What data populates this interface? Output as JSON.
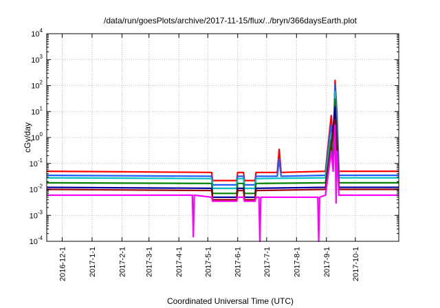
{
  "chart_data": {
    "type": "line",
    "title": "/data/run/goesPlots/archive/2017-11-15/flux/../bryn/366daysEarth.plot",
    "xlabel": "Coordinated Universal Time (UTC)",
    "ylabel": "cGy/day",
    "y_scale": "log",
    "ylim": [
      0.0001,
      10000
    ],
    "xlim": [
      "2016-11-15",
      "2017-11-15"
    ],
    "grid": true,
    "x_tick_labels": [
      "2016-12-1",
      "2017-1-1",
      "2017-2-1",
      "2017-3-1",
      "2017-4-1",
      "2017-5-1",
      "2017-6-1",
      "2017-7-1",
      "2017-8-1",
      "2017-9-1",
      "2017-10-1"
    ],
    "y_ticks": [
      {
        "base": "10",
        "exp": "-4",
        "value": 0.0001
      },
      {
        "base": "10",
        "exp": "-3",
        "value": 0.001
      },
      {
        "base": "10",
        "exp": "-2",
        "value": 0.01
      },
      {
        "base": "10",
        "exp": "-1",
        "value": 0.1
      },
      {
        "base": "10",
        "exp": "0",
        "value": 1
      },
      {
        "base": "10",
        "exp": "1",
        "value": 10
      },
      {
        "base": "10",
        "exp": "2",
        "value": 100
      },
      {
        "base": "10",
        "exp": "3",
        "value": 1000
      },
      {
        "base": "10",
        "exp": "4",
        "value": 10000
      }
    ],
    "series": [
      {
        "color": "#ff0000",
        "points": [
          [
            "2016-11-15",
            0.05
          ],
          [
            "2017-5-5",
            0.045
          ],
          [
            "2017-5-6",
            0.022
          ],
          [
            "2017-5-31",
            0.022
          ],
          [
            "2017-6-1",
            0.045
          ],
          [
            "2017-6-7",
            0.045
          ],
          [
            "2017-6-8",
            0.022
          ],
          [
            "2017-6-19",
            0.022
          ],
          [
            "2017-6-20",
            0.045
          ],
          [
            "2017-7-12",
            0.045
          ],
          [
            "2017-7-14",
            0.35
          ],
          [
            "2017-7-16",
            0.045
          ],
          [
            "2017-8-31",
            0.05
          ],
          [
            "2017-9-6",
            7
          ],
          [
            "2017-9-8",
            0.5
          ],
          [
            "2017-9-10",
            160
          ],
          [
            "2017-9-12",
            8
          ],
          [
            "2017-9-14",
            0.05
          ],
          [
            "2017-11-15",
            0.05
          ]
        ]
      },
      {
        "color": "#1f5bff",
        "points": [
          [
            "2016-11-15",
            0.035
          ],
          [
            "2017-5-5",
            0.032
          ],
          [
            "2017-5-6",
            0.015
          ],
          [
            "2017-5-31",
            0.015
          ],
          [
            "2017-6-1",
            0.032
          ],
          [
            "2017-6-7",
            0.032
          ],
          [
            "2017-6-8",
            0.015
          ],
          [
            "2017-6-19",
            0.015
          ],
          [
            "2017-6-20",
            0.032
          ],
          [
            "2017-7-12",
            0.032
          ],
          [
            "2017-7-14",
            0.15
          ],
          [
            "2017-7-16",
            0.032
          ],
          [
            "2017-8-31",
            0.035
          ],
          [
            "2017-9-6",
            3
          ],
          [
            "2017-9-8",
            0.3
          ],
          [
            "2017-9-10",
            110
          ],
          [
            "2017-9-12",
            5
          ],
          [
            "2017-9-14",
            0.035
          ],
          [
            "2017-11-15",
            0.035
          ]
        ]
      },
      {
        "color": "#00c0c0",
        "points": [
          [
            "2016-11-15",
            0.028
          ],
          [
            "2017-5-5",
            0.026
          ],
          [
            "2017-5-6",
            0.011
          ],
          [
            "2017-5-31",
            0.011
          ],
          [
            "2017-6-1",
            0.026
          ],
          [
            "2017-6-7",
            0.026
          ],
          [
            "2017-6-8",
            0.011
          ],
          [
            "2017-6-19",
            0.011
          ],
          [
            "2017-6-20",
            0.026
          ],
          [
            "2017-8-31",
            0.028
          ],
          [
            "2017-9-6",
            1.5
          ],
          [
            "2017-9-8",
            0.2
          ],
          [
            "2017-9-10",
            60
          ],
          [
            "2017-9-12",
            2
          ],
          [
            "2017-9-14",
            0.028
          ],
          [
            "2017-11-15",
            0.028
          ]
        ]
      },
      {
        "color": "#008000",
        "points": [
          [
            "2016-11-15",
            0.018
          ],
          [
            "2017-5-5",
            0.017
          ],
          [
            "2017-5-6",
            0.007
          ],
          [
            "2017-5-31",
            0.007
          ],
          [
            "2017-6-1",
            0.017
          ],
          [
            "2017-6-7",
            0.017
          ],
          [
            "2017-6-8",
            0.007
          ],
          [
            "2017-6-19",
            0.007
          ],
          [
            "2017-6-20",
            0.017
          ],
          [
            "2017-8-31",
            0.018
          ],
          [
            "2017-9-6",
            0.8
          ],
          [
            "2017-9-8",
            0.1
          ],
          [
            "2017-9-10",
            30
          ],
          [
            "2017-9-12",
            1
          ],
          [
            "2017-9-14",
            0.018
          ],
          [
            "2017-11-15",
            0.018
          ]
        ]
      },
      {
        "color": "#0000a0",
        "points": [
          [
            "2016-11-15",
            0.012
          ],
          [
            "2017-5-5",
            0.011
          ],
          [
            "2017-5-6",
            0.005
          ],
          [
            "2017-5-31",
            0.005
          ],
          [
            "2017-6-1",
            0.011
          ],
          [
            "2017-6-7",
            0.011
          ],
          [
            "2017-6-8",
            0.005
          ],
          [
            "2017-6-19",
            0.005
          ],
          [
            "2017-6-20",
            0.011
          ],
          [
            "2017-8-31",
            0.012
          ],
          [
            "2017-9-6",
            0.4
          ],
          [
            "2017-9-10",
            15
          ],
          [
            "2017-9-14",
            0.012
          ],
          [
            "2017-11-15",
            0.012
          ]
        ]
      },
      {
        "color": "#a00000",
        "points": [
          [
            "2016-11-15",
            0.01
          ],
          [
            "2017-5-5",
            0.009
          ],
          [
            "2017-5-6",
            0.004
          ],
          [
            "2017-5-31",
            0.004
          ],
          [
            "2017-6-1",
            0.009
          ],
          [
            "2017-6-7",
            0.009
          ],
          [
            "2017-6-8",
            0.004
          ],
          [
            "2017-6-19",
            0.004
          ],
          [
            "2017-6-20",
            0.009
          ],
          [
            "2017-8-31",
            0.01
          ],
          [
            "2017-9-10",
            5
          ],
          [
            "2017-9-14",
            0.01
          ],
          [
            "2017-11-15",
            0.01
          ]
        ]
      },
      {
        "color": "#ff00ff",
        "points": [
          [
            "2016-11-15",
            0.006
          ],
          [
            "2017-4-15",
            0.006
          ],
          [
            "2017-4-16",
            0.00015
          ],
          [
            "2017-4-17",
            0.006
          ],
          [
            "2017-5-5",
            0.005
          ],
          [
            "2017-5-6",
            0.0035
          ],
          [
            "2017-5-31",
            0.0035
          ],
          [
            "2017-6-1",
            0.005
          ],
          [
            "2017-6-7",
            0.005
          ],
          [
            "2017-6-8",
            0.0035
          ],
          [
            "2017-6-19",
            0.0035
          ],
          [
            "2017-6-20",
            0.005
          ],
          [
            "2017-6-23",
            0.005
          ],
          [
            "2017-6-24",
            0.0001
          ],
          [
            "2017-6-25",
            0.005
          ],
          [
            "2017-8-23",
            0.005
          ],
          [
            "2017-8-24",
            0.0001
          ],
          [
            "2017-8-25",
            0.005
          ],
          [
            "2017-8-31",
            0.006
          ],
          [
            "2017-9-6",
            0.3
          ],
          [
            "2017-9-8",
            0.05
          ],
          [
            "2017-9-10",
            3
          ],
          [
            "2017-9-11",
            0.003
          ],
          [
            "2017-9-12",
            0.3
          ],
          [
            "2017-9-14",
            0.006
          ],
          [
            "2017-11-15",
            0.006
          ]
        ]
      }
    ]
  }
}
